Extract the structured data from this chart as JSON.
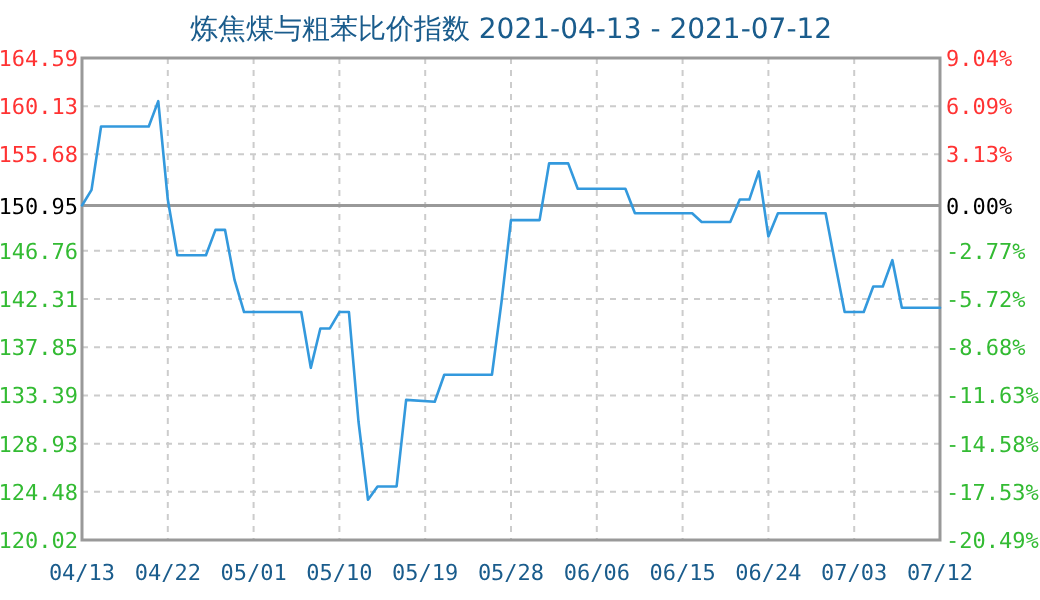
{
  "chart_data": {
    "type": "line",
    "title": "炼焦煤与粗苯比价指数 2021-04-13 - 2021-07-12",
    "x": [
      "2021-04-13",
      "2021-04-14",
      "2021-04-15",
      "2021-04-20",
      "2021-04-21",
      "2021-04-22",
      "2021-04-23",
      "2021-04-26",
      "2021-04-27",
      "2021-04-28",
      "2021-04-29",
      "2021-04-30",
      "2021-05-06",
      "2021-05-07",
      "2021-05-08",
      "2021-05-09",
      "2021-05-10",
      "2021-05-11",
      "2021-05-12",
      "2021-05-13",
      "2021-05-14",
      "2021-05-16",
      "2021-05-17",
      "2021-05-20",
      "2021-05-21",
      "2021-05-26",
      "2021-05-27",
      "2021-05-28",
      "2021-05-31",
      "2021-06-01",
      "2021-06-03",
      "2021-06-04",
      "2021-06-09",
      "2021-06-10",
      "2021-06-16",
      "2021-06-17",
      "2021-06-20",
      "2021-06-21",
      "2021-06-22",
      "2021-06-23",
      "2021-06-24",
      "2021-06-25",
      "2021-06-30",
      "2021-07-01",
      "2021-07-02",
      "2021-07-04",
      "2021-07-05",
      "2021-07-06",
      "2021-07-07",
      "2021-07-08",
      "2021-07-12"
    ],
    "series": [
      {
        "color": "#3399dd",
        "values": [
          150.95,
          152.4,
          158.25,
          158.25,
          160.6,
          151.5,
          146.35,
          146.35,
          148.7,
          148.7,
          144.07,
          141.1,
          141.1,
          135.94,
          139.58,
          139.58,
          141.1,
          141.1,
          131,
          123.74,
          124.97,
          124.97,
          132.98,
          132.8,
          135.3,
          135.3,
          142,
          149.6,
          149.6,
          154.85,
          154.85,
          152.5,
          152.5,
          150.23,
          150.23,
          149.43,
          149.43,
          151.5,
          151.5,
          154.1,
          148.08,
          150.23,
          150.23,
          145.6,
          141.1,
          141.1,
          143.46,
          143.46,
          145.9,
          141.5,
          141.5
        ]
      }
    ],
    "xlim": [
      "2021-04-13",
      "2021-07-12"
    ],
    "xticks": [
      {
        "value": "2021-04-13",
        "label": "04/13"
      },
      {
        "value": "2021-04-22",
        "label": "04/22"
      },
      {
        "value": "2021-05-01",
        "label": "05/01"
      },
      {
        "value": "2021-05-10",
        "label": "05/10"
      },
      {
        "value": "2021-05-19",
        "label": "05/19"
      },
      {
        "value": "2021-05-28",
        "label": "05/28"
      },
      {
        "value": "2021-06-06",
        "label": "06/06"
      },
      {
        "value": "2021-06-15",
        "label": "06/15"
      },
      {
        "value": "2021-06-24",
        "label": "06/24"
      },
      {
        "value": "2021-07-03",
        "label": "07/03"
      },
      {
        "value": "2021-07-12",
        "label": "07/12"
      }
    ],
    "ylim": [
      120.02,
      164.59
    ],
    "yticks": [
      120.02,
      124.48,
      128.93,
      133.39,
      137.85,
      142.31,
      146.76,
      150.95,
      155.68,
      160.13,
      164.59
    ],
    "y2lim": [
      -20.49,
      9.04
    ],
    "y2ticks": [
      {
        "value": -20.49,
        "label": "-20.49%"
      },
      {
        "value": -17.53,
        "label": "-17.53%"
      },
      {
        "value": -14.58,
        "label": "-14.58%"
      },
      {
        "value": -11.63,
        "label": "-11.63%"
      },
      {
        "value": -8.68,
        "label": "-8.68%"
      },
      {
        "value": -5.72,
        "label": "-5.72%"
      },
      {
        "value": -2.77,
        "label": "-2.77%"
      },
      {
        "value": 0,
        "label": "0.00%"
      },
      {
        "value": 3.13,
        "label": "3.13%"
      },
      {
        "value": 6.09,
        "label": "6.09%"
      },
      {
        "value": 9.04,
        "label": "9.04%"
      }
    ],
    "ref_lines": [
      {
        "axis": "y",
        "value": 150.95,
        "color": "#999999"
      }
    ],
    "grid": true
  }
}
